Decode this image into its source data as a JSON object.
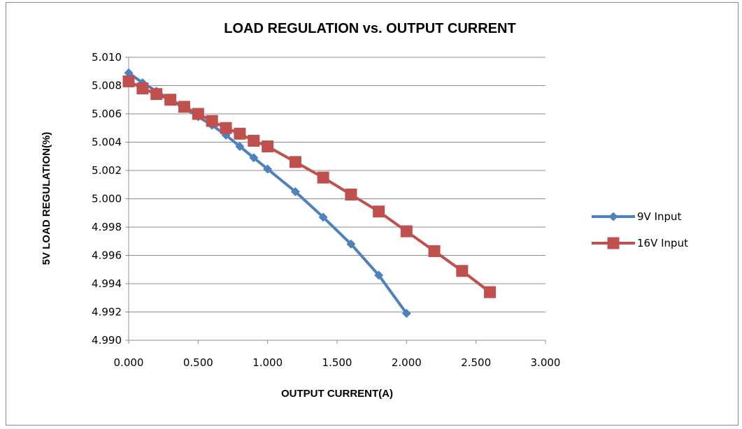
{
  "chart_data": {
    "type": "line",
    "title": "LOAD REGULATION vs. OUTPUT CURRENT",
    "xlabel": "OUTPUT CURRENT(A)",
    "ylabel": "5V LOAD REGULATION(%)",
    "xlim": [
      0.0,
      3.0
    ],
    "ylim": [
      4.99,
      5.01
    ],
    "xticks": [
      "0.000",
      "0.500",
      "1.000",
      "1.500",
      "2.000",
      "2.500",
      "3.000"
    ],
    "yticks": [
      "5.010",
      "5.008",
      "5.006",
      "5.004",
      "5.002",
      "5.000",
      "4.998",
      "4.996",
      "4.994",
      "4.992",
      "4.990"
    ],
    "grid": true,
    "legend": "right",
    "series": [
      {
        "name": "9V Input",
        "color": "#4F81BD",
        "marker": "diamond",
        "x": [
          0.0,
          0.1,
          0.2,
          0.3,
          0.4,
          0.5,
          0.6,
          0.7,
          0.8,
          0.9,
          1.0,
          1.2,
          1.4,
          1.6,
          1.8,
          2.0
        ],
        "y": [
          5.0089,
          5.0082,
          5.0076,
          5.007,
          5.0064,
          5.0058,
          5.0052,
          5.0045,
          5.0037,
          5.0029,
          5.0021,
          5.0005,
          4.9987,
          4.9968,
          4.9946,
          4.9919
        ]
      },
      {
        "name": "16V Input",
        "color": "#C0504D",
        "marker": "square",
        "x": [
          0.0,
          0.1,
          0.2,
          0.3,
          0.4,
          0.5,
          0.6,
          0.7,
          0.8,
          0.9,
          1.0,
          1.2,
          1.4,
          1.6,
          1.8,
          2.0,
          2.2,
          2.4,
          2.6
        ],
        "y": [
          5.0083,
          5.0078,
          5.0074,
          5.007,
          5.0065,
          5.006,
          5.0055,
          5.005,
          5.0046,
          5.0041,
          5.0037,
          5.0026,
          5.0015,
          5.0003,
          4.9991,
          4.9977,
          4.9963,
          4.9949,
          4.9934
        ]
      }
    ]
  }
}
